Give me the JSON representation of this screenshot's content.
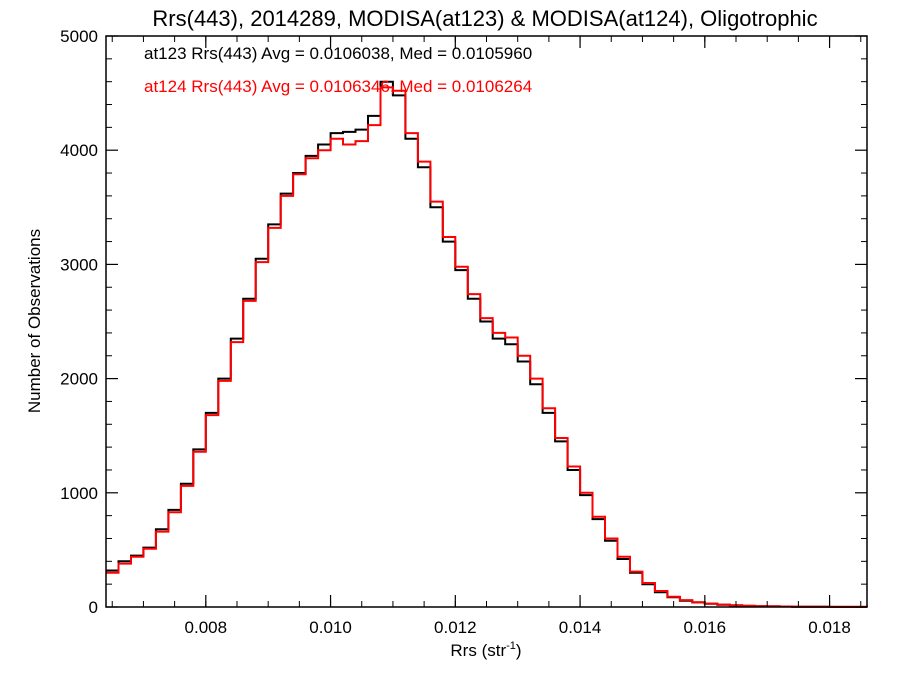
{
  "chart_data": {
    "type": "line",
    "title": "Rrs(443), 2014289, MODISA(at123) & MODISA(at124), Oligotrophic",
    "xlabel": "Rrs (str",
    "xlabel_sup": "-1",
    "xlabel_close": ")",
    "ylabel": "Number of Observations",
    "xlim": [
      0.0064,
      0.0186
    ],
    "ylim": [
      0,
      5000
    ],
    "xticks": [
      0.008,
      0.01,
      0.012,
      0.014,
      0.016,
      0.018
    ],
    "xtick_labels": [
      "0.008",
      "0.010",
      "0.012",
      "0.014",
      "0.016",
      "0.018"
    ],
    "yticks": [
      0,
      1000,
      2000,
      3000,
      4000,
      5000
    ],
    "ytick_labels": [
      "0",
      "1000",
      "2000",
      "3000",
      "4000",
      "5000"
    ],
    "grid": false,
    "annotations": [
      {
        "text": "at123 Rrs(443) Avg = 0.0106038, Med = 0.0105960",
        "color": "#000000"
      },
      {
        "text": "at124 Rrs(443) Avg = 0.0106346, Med = 0.0106264",
        "color": "#ff0000"
      }
    ],
    "series": [
      {
        "color": "#000000",
        "step": true,
        "points": [
          [
            0.0064,
            320
          ],
          [
            0.0066,
            400
          ],
          [
            0.0068,
            450
          ],
          [
            0.007,
            520
          ],
          [
            0.0072,
            680
          ],
          [
            0.0074,
            850
          ],
          [
            0.0076,
            1080
          ],
          [
            0.0078,
            1380
          ],
          [
            0.008,
            1700
          ],
          [
            0.0082,
            2000
          ],
          [
            0.0084,
            2350
          ],
          [
            0.0086,
            2700
          ],
          [
            0.0088,
            3050
          ],
          [
            0.009,
            3350
          ],
          [
            0.0092,
            3620
          ],
          [
            0.0094,
            3800
          ],
          [
            0.0096,
            3950
          ],
          [
            0.0098,
            4050
          ],
          [
            0.01,
            4150
          ],
          [
            0.0102,
            4160
          ],
          [
            0.0104,
            4180
          ],
          [
            0.0106,
            4300
          ],
          [
            0.0108,
            4600
          ],
          [
            0.011,
            4480
          ],
          [
            0.0112,
            4100
          ],
          [
            0.0114,
            3850
          ],
          [
            0.0116,
            3500
          ],
          [
            0.0118,
            3200
          ],
          [
            0.012,
            2950
          ],
          [
            0.0122,
            2700
          ],
          [
            0.0124,
            2500
          ],
          [
            0.0126,
            2350
          ],
          [
            0.0128,
            2300
          ],
          [
            0.013,
            2150
          ],
          [
            0.0132,
            1950
          ],
          [
            0.0134,
            1700
          ],
          [
            0.0136,
            1450
          ],
          [
            0.0138,
            1200
          ],
          [
            0.014,
            980
          ],
          [
            0.0142,
            770
          ],
          [
            0.0144,
            580
          ],
          [
            0.0146,
            420
          ],
          [
            0.0148,
            300
          ],
          [
            0.015,
            200
          ],
          [
            0.0152,
            130
          ],
          [
            0.0154,
            85
          ],
          [
            0.0156,
            55
          ],
          [
            0.0158,
            40
          ],
          [
            0.016,
            28
          ],
          [
            0.0162,
            20
          ],
          [
            0.0164,
            14
          ],
          [
            0.0166,
            10
          ],
          [
            0.0168,
            7
          ],
          [
            0.017,
            5
          ],
          [
            0.0172,
            4
          ],
          [
            0.0174,
            3
          ],
          [
            0.0176,
            2
          ],
          [
            0.0178,
            2
          ],
          [
            0.018,
            1
          ],
          [
            0.0182,
            1
          ],
          [
            0.0184,
            1
          ],
          [
            0.0186,
            0
          ]
        ]
      },
      {
        "color": "#ff0000",
        "step": true,
        "points": [
          [
            0.0064,
            300
          ],
          [
            0.0066,
            380
          ],
          [
            0.0068,
            440
          ],
          [
            0.007,
            510
          ],
          [
            0.0072,
            660
          ],
          [
            0.0074,
            830
          ],
          [
            0.0076,
            1060
          ],
          [
            0.0078,
            1360
          ],
          [
            0.008,
            1680
          ],
          [
            0.0082,
            1980
          ],
          [
            0.0084,
            2320
          ],
          [
            0.0086,
            2680
          ],
          [
            0.0088,
            3020
          ],
          [
            0.009,
            3320
          ],
          [
            0.0092,
            3600
          ],
          [
            0.0094,
            3790
          ],
          [
            0.0096,
            3930
          ],
          [
            0.0098,
            4000
          ],
          [
            0.01,
            4100
          ],
          [
            0.0102,
            4050
          ],
          [
            0.0104,
            4080
          ],
          [
            0.0106,
            4220
          ],
          [
            0.0108,
            4550
          ],
          [
            0.011,
            4520
          ],
          [
            0.0112,
            4150
          ],
          [
            0.0114,
            3900
          ],
          [
            0.0116,
            3550
          ],
          [
            0.0118,
            3240
          ],
          [
            0.012,
            2980
          ],
          [
            0.0122,
            2740
          ],
          [
            0.0124,
            2530
          ],
          [
            0.0126,
            2400
          ],
          [
            0.0128,
            2360
          ],
          [
            0.013,
            2200
          ],
          [
            0.0132,
            2000
          ],
          [
            0.0134,
            1740
          ],
          [
            0.0136,
            1480
          ],
          [
            0.0138,
            1230
          ],
          [
            0.014,
            1000
          ],
          [
            0.0142,
            790
          ],
          [
            0.0144,
            600
          ],
          [
            0.0146,
            440
          ],
          [
            0.0148,
            310
          ],
          [
            0.015,
            210
          ],
          [
            0.0152,
            140
          ],
          [
            0.0154,
            90
          ],
          [
            0.0156,
            60
          ],
          [
            0.0158,
            42
          ],
          [
            0.016,
            30
          ],
          [
            0.0162,
            21
          ],
          [
            0.0164,
            15
          ],
          [
            0.0166,
            11
          ],
          [
            0.0168,
            8
          ],
          [
            0.017,
            6
          ],
          [
            0.0172,
            4
          ],
          [
            0.0174,
            3
          ],
          [
            0.0176,
            2
          ],
          [
            0.0178,
            2
          ],
          [
            0.018,
            1
          ],
          [
            0.0182,
            1
          ],
          [
            0.0184,
            1
          ],
          [
            0.0186,
            0
          ]
        ]
      }
    ]
  }
}
